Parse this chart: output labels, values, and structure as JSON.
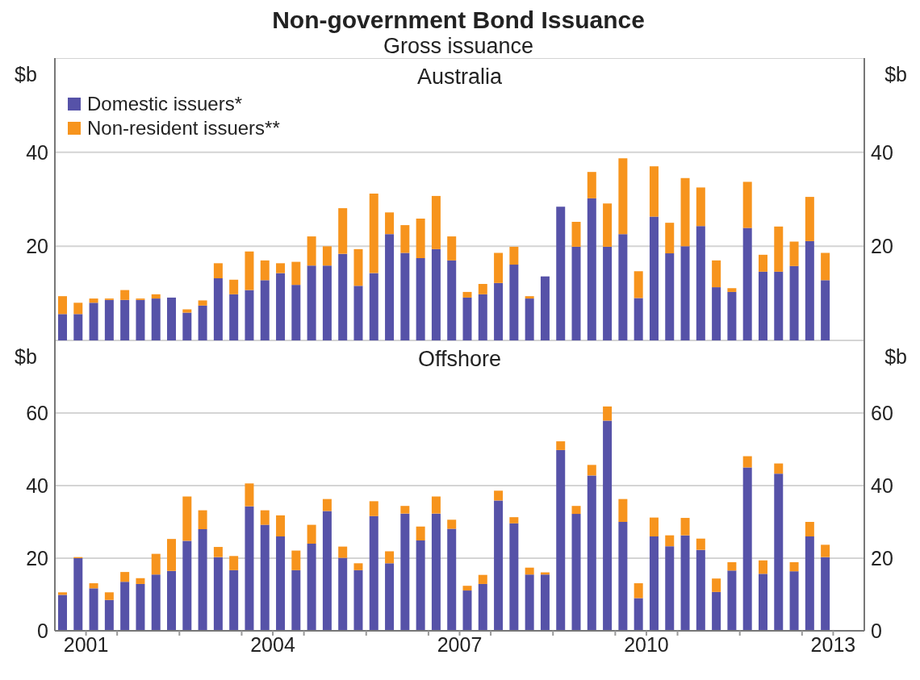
{
  "chart_data": [
    {
      "type": "bar",
      "title": "Non-government Bond Issuance",
      "subtitle": "Gross issuance",
      "annotations": [
        "Australia"
      ],
      "stacked": true,
      "legend": "top left",
      "grid": "y",
      "tick_labels": "y",
      "ylabel": "$b",
      "y2label": "$b",
      "x": [
        2001.125,
        2001.375,
        2001.625,
        2001.875,
        2002.125,
        2002.375,
        2002.625,
        2002.875,
        2003.125,
        2003.375,
        2003.625,
        2003.875,
        2004.125,
        2004.375,
        2004.625,
        2004.875,
        2005.125,
        2005.375,
        2005.625,
        2005.875,
        2006.125,
        2006.375,
        2006.625,
        2006.875,
        2007.125,
        2007.375,
        2007.625,
        2007.875,
        2008.125,
        2008.375,
        2008.625,
        2008.875,
        2009.125,
        2009.375,
        2009.625,
        2009.875,
        2010.125,
        2010.375,
        2010.625,
        2010.875,
        2011.125,
        2011.375,
        2011.625,
        2011.875,
        2012.125,
        2012.375,
        2012.625,
        2012.875,
        2013.125,
        2013.375
      ],
      "xlim": [
        2001,
        2014
      ],
      "ylim": [
        0,
        60
      ],
      "yticks": [
        20,
        40
      ],
      "y2lim": [
        0,
        60
      ],
      "y2ticks": [
        20,
        40
      ],
      "series": [
        {
          "name": "Domestic issuers*",
          "color": "#5652a8",
          "values": [
            5.6,
            5.6,
            8.0,
            8.6,
            8.6,
            8.6,
            8.9,
            9.1,
            5.9,
            7.4,
            13.2,
            9.8,
            10.7,
            12.8,
            14.3,
            11.8,
            15.9,
            15.9,
            18.4,
            11.6,
            14.3,
            22.6,
            18.6,
            17.5,
            19.4,
            17.0,
            9.1,
            9.8,
            12.2,
            16.1,
            8.9,
            13.6,
            28.4,
            19.9,
            30.2,
            19.9,
            22.6,
            9.0,
            26.3,
            18.5,
            20.0,
            24.3,
            11.3,
            10.3,
            23.9,
            14.6,
            14.6,
            15.8,
            21.1,
            12.8
          ]
        },
        {
          "name": "Non-resident issuers**",
          "color": "#f7941d",
          "values": [
            3.8,
            2.4,
            0.9,
            0.3,
            2.1,
            0.3,
            0.9,
            0,
            0.7,
            1.1,
            3.2,
            3.1,
            8.2,
            4.2,
            2.1,
            4.9,
            6.2,
            4.1,
            9.7,
            7.8,
            16.9,
            4.6,
            5.9,
            8.4,
            11.3,
            5.1,
            1.2,
            2.2,
            6.4,
            3.8,
            0.5,
            0,
            0,
            5.3,
            5.6,
            9.2,
            16.1,
            5.7,
            10.7,
            6.5,
            14.5,
            8.2,
            5.7,
            0.8,
            9.8,
            3.6,
            9.6,
            5.2,
            9.4,
            5.8
          ]
        }
      ]
    },
    {
      "type": "bar",
      "title": "Offshore",
      "stacked": true,
      "grid": "y",
      "ylabel": "$b",
      "y2label": "$b",
      "x": [
        2001.125,
        2001.375,
        2001.625,
        2001.875,
        2002.125,
        2002.375,
        2002.625,
        2002.875,
        2003.125,
        2003.375,
        2003.625,
        2003.875,
        2004.125,
        2004.375,
        2004.625,
        2004.875,
        2005.125,
        2005.375,
        2005.625,
        2005.875,
        2006.125,
        2006.375,
        2006.625,
        2006.875,
        2007.125,
        2007.375,
        2007.625,
        2007.875,
        2008.125,
        2008.375,
        2008.625,
        2008.875,
        2009.125,
        2009.375,
        2009.625,
        2009.875,
        2010.125,
        2010.375,
        2010.625,
        2010.875,
        2011.125,
        2011.375,
        2011.625,
        2011.875,
        2012.125,
        2012.375,
        2012.625,
        2012.875,
        2013.125,
        2013.375
      ],
      "xlim": [
        2001,
        2014
      ],
      "xticks": [
        {
          "value": 2001.5,
          "label": "2001"
        },
        {
          "value": 2002,
          "label": null
        },
        {
          "value": 2003,
          "label": null
        },
        {
          "value": 2004,
          "label": null
        },
        {
          "value": 2004.5,
          "label": "2004"
        },
        {
          "value": 2005,
          "label": null
        },
        {
          "value": 2006,
          "label": null
        },
        {
          "value": 2007,
          "label": null
        },
        {
          "value": 2007.5,
          "label": "2007"
        },
        {
          "value": 2008,
          "label": null
        },
        {
          "value": 2009,
          "label": null
        },
        {
          "value": 2010,
          "label": null
        },
        {
          "value": 2010.5,
          "label": "2010"
        },
        {
          "value": 2011,
          "label": null
        },
        {
          "value": 2012,
          "label": null
        },
        {
          "value": 2013,
          "label": null
        },
        {
          "value": 2013.5,
          "label": "2013"
        }
      ],
      "ylim": [
        0,
        80
      ],
      "yticks": [
        0,
        20,
        40,
        60
      ],
      "y2lim": [
        0,
        80
      ],
      "y2ticks": [
        0,
        20,
        40,
        60
      ],
      "series": [
        {
          "color": "#5652a8",
          "values": [
            9.9,
            20.0,
            11.7,
            8.5,
            13.5,
            12.9,
            15.5,
            16.5,
            24.8,
            28.0,
            20.3,
            16.7,
            34.3,
            29.2,
            26.0,
            16.7,
            24.0,
            33.0,
            20.1,
            16.7,
            31.6,
            18.6,
            32.3,
            24.9,
            32.3,
            28.1,
            11.1,
            12.9,
            35.9,
            29.6,
            15.5,
            15.5,
            49.8,
            32.2,
            42.8,
            57.9,
            30.0,
            9.0,
            26.0,
            23.3,
            26.3,
            22.3,
            10.7,
            16.6,
            45.0,
            15.7,
            43.3,
            16.4,
            26.0,
            20.3
          ]
        },
        {
          "color": "#f7941d",
          "values": [
            0.7,
            0.3,
            1.4,
            2.1,
            2.7,
            1.6,
            5.7,
            8.8,
            12.2,
            5.2,
            2.8,
            3.9,
            6.3,
            4.0,
            5.8,
            5.4,
            5.2,
            3.3,
            3.1,
            1.9,
            4.1,
            3.3,
            2.1,
            3.8,
            4.7,
            2.5,
            1.3,
            2.5,
            2.7,
            1.7,
            1.9,
            0.6,
            2.4,
            2.2,
            2.9,
            3.9,
            6.3,
            4.1,
            5.2,
            3.0,
            4.8,
            3.1,
            3.7,
            2.3,
            3.1,
            3.7,
            2.8,
            2.5,
            4.0,
            3.4
          ]
        }
      ]
    }
  ]
}
